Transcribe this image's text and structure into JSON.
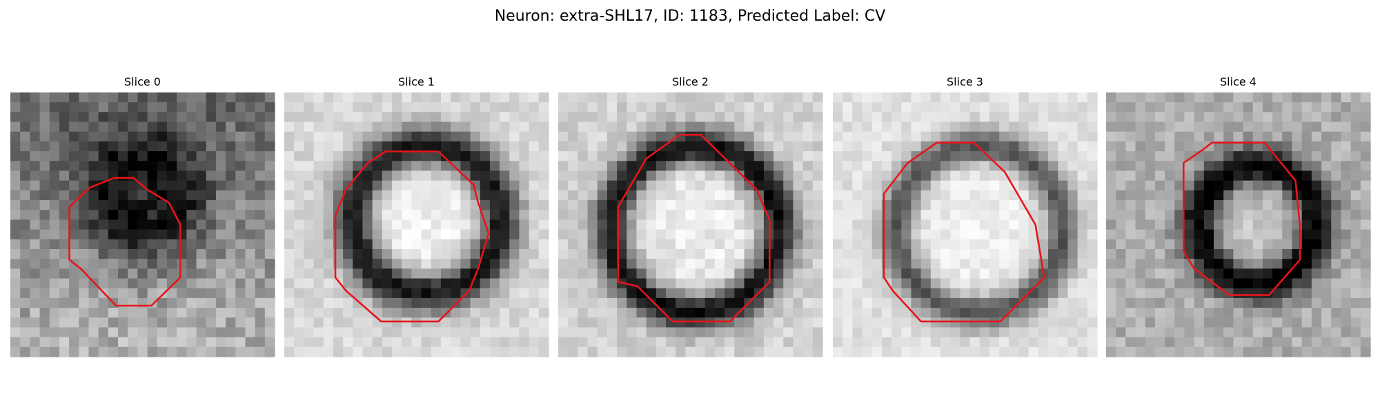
{
  "title": "Neuron: extra-SHL17, ID: 1183, Predicted Label: CV",
  "panels": [
    {
      "title": "Slice 0"
    },
    {
      "title": "Slice 1"
    },
    {
      "title": "Slice 2"
    },
    {
      "title": "Slice 3"
    },
    {
      "title": "Slice 4"
    }
  ]
}
